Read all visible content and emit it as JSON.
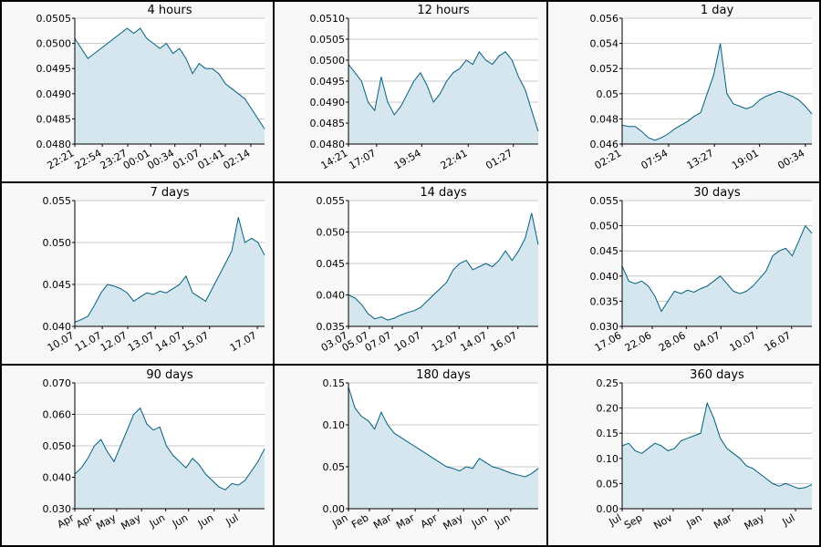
{
  "chart_data": [
    {
      "type": "area",
      "title": "4 hours",
      "color": "#005f7f",
      "fill": "#d5e6ee",
      "grid": true,
      "values": [
        0.0501,
        0.0499,
        0.0497,
        0.0498,
        0.0499,
        0.05,
        0.0501,
        0.0502,
        0.0503,
        0.0502,
        0.0503,
        0.0501,
        0.05,
        0.0499,
        0.05,
        0.0498,
        0.0499,
        0.0497,
        0.0494,
        0.0496,
        0.0495,
        0.0495,
        0.0494,
        0.0492,
        0.0491,
        0.049,
        0.0489,
        0.0487,
        0.0485,
        0.0483
      ],
      "xlim": [
        0,
        29
      ],
      "xticks": [
        {
          "value": 0,
          "label": "22:21"
        },
        {
          "value": 4.2,
          "label": "22:54"
        },
        {
          "value": 8.1,
          "label": "23:27"
        },
        {
          "value": 11.6,
          "label": "00:01"
        },
        {
          "value": 15.3,
          "label": "00:34"
        },
        {
          "value": 19.2,
          "label": "01:07"
        },
        {
          "value": 23,
          "label": "01:41"
        },
        {
          "value": 26.9,
          "label": "02:14"
        }
      ],
      "ylim": [
        0.048,
        0.0505
      ],
      "yticks": [
        {
          "value": 0.048,
          "label": "0.0480"
        },
        0.0485,
        {
          "value": 0.049,
          "label": "0.0490"
        },
        0.0495,
        {
          "value": 0.05,
          "label": "0.0500"
        },
        0.0505
      ]
    },
    {
      "type": "area",
      "title": "12 hours",
      "color": "#005f7f",
      "fill": "#d5e6ee",
      "grid": true,
      "values": [
        0.0499,
        0.0497,
        0.0495,
        0.049,
        0.0488,
        0.0496,
        0.049,
        0.0487,
        0.0489,
        0.0492,
        0.0495,
        0.0497,
        0.0494,
        0.049,
        0.0492,
        0.0495,
        0.0497,
        0.0498,
        0.05,
        0.0499,
        0.0502,
        0.05,
        0.0499,
        0.0501,
        0.0502,
        0.05,
        0.0496,
        0.0493,
        0.0488,
        0.0483
      ],
      "xlim": [
        0,
        29
      ],
      "xticks": [
        {
          "value": 0,
          "label": "14:21"
        },
        {
          "value": 4.3,
          "label": "17:07"
        },
        {
          "value": 11.2,
          "label": "19:54"
        },
        {
          "value": 18.3,
          "label": "22:41"
        },
        {
          "value": 25.2,
          "label": "01:27"
        }
      ],
      "ylim": [
        0.048,
        0.051
      ],
      "yticks": [
        {
          "value": 0.048,
          "label": "0.0480"
        },
        0.0485,
        {
          "value": 0.049,
          "label": "0.0490"
        },
        0.0495,
        {
          "value": 0.05,
          "label": "0.0500"
        },
        0.0505,
        {
          "value": 0.051,
          "label": "0.0510"
        }
      ]
    },
    {
      "type": "area",
      "title": "1 day",
      "color": "#005f7f",
      "fill": "#d5e6ee",
      "grid": true,
      "values": [
        0.0475,
        0.0474,
        0.0474,
        0.047,
        0.0465,
        0.0463,
        0.0465,
        0.0468,
        0.0472,
        0.0475,
        0.0478,
        0.0482,
        0.0485,
        0.05,
        0.0515,
        0.054,
        0.05,
        0.0492,
        0.049,
        0.0488,
        0.049,
        0.0495,
        0.0498,
        0.05,
        0.0502,
        0.05,
        0.0498,
        0.0495,
        0.049,
        0.0484
      ],
      "xlim": [
        0,
        29
      ],
      "xticks": [
        {
          "value": 0,
          "label": "02:21"
        },
        {
          "value": 7.1,
          "label": "07:54"
        },
        {
          "value": 14.1,
          "label": "13:27"
        },
        {
          "value": 21,
          "label": "19:01"
        },
        {
          "value": 28,
          "label": "00:34"
        }
      ],
      "ylim": [
        0.046,
        0.056
      ],
      "yticks": [
        0.046,
        0.048,
        0.05,
        0.052,
        0.054,
        0.056
      ]
    },
    {
      "type": "area",
      "title": "7 days",
      "color": "#005f7f",
      "fill": "#d5e6ee",
      "grid": true,
      "values": [
        0.0405,
        0.0408,
        0.0412,
        0.0425,
        0.044,
        0.045,
        0.0448,
        0.0445,
        0.044,
        0.043,
        0.0435,
        0.044,
        0.0438,
        0.0442,
        0.044,
        0.0445,
        0.045,
        0.046,
        0.044,
        0.0435,
        0.043,
        0.0445,
        0.046,
        0.0475,
        0.049,
        0.053,
        0.05,
        0.0505,
        0.05,
        0.0485
      ],
      "xlim": [
        0,
        29
      ],
      "xticks": [
        {
          "value": 0,
          "label": "10.07"
        },
        {
          "value": 4.2,
          "label": "11.07"
        },
        {
          "value": 8.1,
          "label": "12.07"
        },
        {
          "value": 12.3,
          "label": "13.07"
        },
        {
          "value": 16.5,
          "label": "14.07"
        },
        {
          "value": 20.6,
          "label": "15.07"
        },
        {
          "value": 27.9,
          "label": "17.07"
        }
      ],
      "ylim": [
        0.04,
        0.055
      ],
      "yticks": [
        {
          "value": 0.04,
          "label": "0.040"
        },
        0.045,
        {
          "value": 0.05,
          "label": "0.050"
        },
        0.055
      ]
    },
    {
      "type": "area",
      "title": "14 days",
      "color": "#005f7f",
      "fill": "#d5e6ee",
      "grid": true,
      "values": [
        0.04,
        0.0395,
        0.0385,
        0.037,
        0.0362,
        0.0365,
        0.036,
        0.0363,
        0.0368,
        0.0372,
        0.0375,
        0.038,
        0.039,
        0.04,
        0.041,
        0.042,
        0.044,
        0.045,
        0.0455,
        0.044,
        0.0445,
        0.045,
        0.0445,
        0.0455,
        0.047,
        0.0455,
        0.047,
        0.049,
        0.053,
        0.048
      ],
      "xlim": [
        0,
        29
      ],
      "xticks": [
        {
          "value": 0,
          "label": "03.07"
        },
        {
          "value": 3.2,
          "label": "05.07"
        },
        {
          "value": 6.7,
          "label": "07.07"
        },
        {
          "value": 11.2,
          "label": "10.07"
        },
        {
          "value": 16.9,
          "label": "12.07"
        },
        {
          "value": 21.3,
          "label": "14.07"
        },
        {
          "value": 25.9,
          "label": "16.07"
        }
      ],
      "ylim": [
        0.035,
        0.055
      ],
      "yticks": [
        0.035,
        {
          "value": 0.04,
          "label": "0.040"
        },
        0.045,
        {
          "value": 0.05,
          "label": "0.050"
        },
        0.055
      ]
    },
    {
      "type": "area",
      "title": "30 days",
      "color": "#005f7f",
      "fill": "#d5e6ee",
      "grid": true,
      "values": [
        0.042,
        0.039,
        0.0385,
        0.039,
        0.038,
        0.036,
        0.033,
        0.035,
        0.037,
        0.0365,
        0.0372,
        0.0368,
        0.0375,
        0.038,
        0.039,
        0.04,
        0.0385,
        0.037,
        0.0365,
        0.037,
        0.038,
        0.0395,
        0.041,
        0.044,
        0.045,
        0.0455,
        0.044,
        0.047,
        0.05,
        0.0485
      ],
      "xlim": [
        0,
        29
      ],
      "xticks": [
        {
          "value": 0,
          "label": "17.06"
        },
        {
          "value": 4.6,
          "label": "22.06"
        },
        {
          "value": 9.8,
          "label": "28.06"
        },
        {
          "value": 15.1,
          "label": "04.07"
        },
        {
          "value": 20.6,
          "label": "10.07"
        },
        {
          "value": 25.9,
          "label": "16.07"
        }
      ],
      "ylim": [
        0.03,
        0.055
      ],
      "yticks": [
        {
          "value": 0.03,
          "label": "0.030"
        },
        0.035,
        {
          "value": 0.04,
          "label": "0.040"
        },
        0.045,
        {
          "value": 0.05,
          "label": "0.050"
        },
        0.055
      ]
    },
    {
      "type": "area",
      "title": "90 days",
      "color": "#005f7f",
      "fill": "#d5e6ee",
      "grid": true,
      "values": [
        0.041,
        0.043,
        0.046,
        0.05,
        0.052,
        0.048,
        0.045,
        0.05,
        0.055,
        0.06,
        0.062,
        0.057,
        0.055,
        0.056,
        0.05,
        0.047,
        0.045,
        0.043,
        0.046,
        0.044,
        0.041,
        0.039,
        0.037,
        0.036,
        0.038,
        0.0375,
        0.039,
        0.042,
        0.045,
        0.049
      ],
      "xlim": [
        0,
        29
      ],
      "xticks": [
        {
          "value": 0,
          "label": "Apr"
        },
        {
          "value": 2.9,
          "label": "Apr"
        },
        {
          "value": 6.4,
          "label": "May"
        },
        {
          "value": 10.2,
          "label": "May"
        },
        {
          "value": 13.9,
          "label": "Jun"
        },
        {
          "value": 17.4,
          "label": "Jun"
        },
        {
          "value": 21.3,
          "label": "Jun"
        },
        {
          "value": 25.1,
          "label": "Jul"
        }
      ],
      "ylim": [
        0.03,
        0.07
      ],
      "yticks": [
        {
          "value": 0.03,
          "label": "0.030"
        },
        {
          "value": 0.04,
          "label": "0.040"
        },
        {
          "value": 0.05,
          "label": "0.050"
        },
        {
          "value": 0.06,
          "label": "0.060"
        },
        {
          "value": 0.07,
          "label": "0.070"
        }
      ]
    },
    {
      "type": "area",
      "title": "180 days",
      "color": "#005f7f",
      "fill": "#d5e6ee",
      "grid": true,
      "values": [
        0.145,
        0.12,
        0.11,
        0.105,
        0.095,
        0.115,
        0.1,
        0.09,
        0.085,
        0.08,
        0.075,
        0.07,
        0.065,
        0.06,
        0.055,
        0.05,
        0.048,
        0.045,
        0.05,
        0.048,
        0.06,
        0.055,
        0.05,
        0.048,
        0.045,
        0.042,
        0.04,
        0.038,
        0.042,
        0.048
      ],
      "xlim": [
        0,
        29
      ],
      "xticks": [
        {
          "value": 0,
          "label": "Jan"
        },
        {
          "value": 3.2,
          "label": "Feb"
        },
        {
          "value": 6.7,
          "label": "Mar"
        },
        {
          "value": 10.2,
          "label": "Mar"
        },
        {
          "value": 13.7,
          "label": "Apr"
        },
        {
          "value": 17.6,
          "label": "May"
        },
        {
          "value": 21.3,
          "label": "Jun"
        },
        {
          "value": 24.8,
          "label": "Jun"
        }
      ],
      "ylim": [
        0,
        0.15
      ],
      "yticks": [
        {
          "value": 0,
          "label": "0.00"
        },
        0.05,
        {
          "value": 0.1,
          "label": "0.10"
        },
        0.15
      ]
    },
    {
      "type": "area",
      "title": "360 days",
      "color": "#005f7f",
      "fill": "#d5e6ee",
      "grid": true,
      "values": [
        0.125,
        0.13,
        0.115,
        0.11,
        0.12,
        0.13,
        0.125,
        0.115,
        0.12,
        0.135,
        0.14,
        0.145,
        0.15,
        0.21,
        0.18,
        0.14,
        0.12,
        0.11,
        0.1,
        0.085,
        0.08,
        0.07,
        0.06,
        0.05,
        0.045,
        0.05,
        0.045,
        0.04,
        0.042,
        0.048
      ],
      "xlim": [
        0,
        29
      ],
      "xticks": [
        {
          "value": 0,
          "label": "Jul"
        },
        {
          "value": 3.2,
          "label": "Sep"
        },
        {
          "value": 7.8,
          "label": "Nov"
        },
        {
          "value": 12.3,
          "label": "Jan"
        },
        {
          "value": 16.9,
          "label": "Mar"
        },
        {
          "value": 21.8,
          "label": "May"
        },
        {
          "value": 26.5,
          "label": "Jul"
        }
      ],
      "ylim": [
        0,
        0.25
      ],
      "yticks": [
        {
          "value": 0,
          "label": "0.00"
        },
        0.05,
        {
          "value": 0.1,
          "label": "0.10"
        },
        0.15,
        {
          "value": 0.2,
          "label": "0.20"
        },
        0.25
      ]
    }
  ]
}
